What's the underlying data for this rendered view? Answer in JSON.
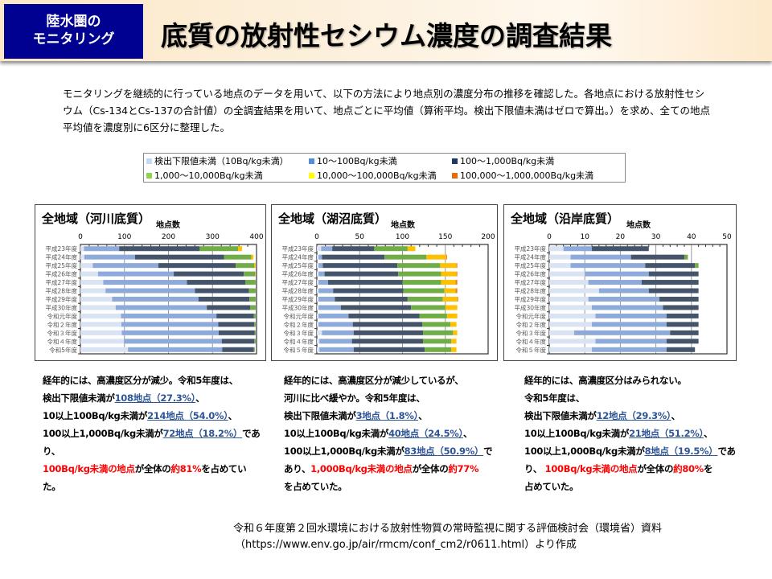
{
  "header": {
    "badge_line1": "陸水圏の",
    "badge_line2": "モニタリング",
    "title": "底質の放射性セシウム濃度の調査結果"
  },
  "intro": "モニタリングを継続的に行っている地点のデータを用いて、以下の方法により地点別の濃度分布の推移を確認した。各地点における放射性セシウム（Cs-134とCs-137の合計値）の全調査結果を用いて、地点ごとに平均値（算術平均。検出下限値未満はゼロで算出。）を求め、全ての地点平均値を濃度別に6区分に整理した。",
  "legend": [
    {
      "label": "検出下限値未満（10Bq/kg未満）",
      "color": "#c5d9f1"
    },
    {
      "label": "10～100Bq/kg未満",
      "color": "#558ed5"
    },
    {
      "label": "100～1,000Bq/kg未満",
      "color": "#1f3864"
    },
    {
      "label": "1,000～10,000Bq/kg未満",
      "color": "#92d050"
    },
    {
      "label": "10,000～100,000Bq/kg未満",
      "color": "#ffff00"
    },
    {
      "label": "100,000～1,000,000Bq/kg未満",
      "color": "#e46c0a"
    }
  ],
  "bar_colors": [
    "#dae3f3",
    "#8eaadb",
    "#44546a",
    "#70ad47",
    "#ffc000",
    "#ed7d31"
  ],
  "chart_data": [
    {
      "type": "bar",
      "orientation": "horizontal",
      "stacked": true,
      "title": "全地域（河川底質）",
      "xlabel": "地点数",
      "xlim": [
        0,
        400
      ],
      "xticks": [
        0,
        100,
        200,
        300,
        400
      ],
      "grid": true,
      "categories": [
        "平成23年度",
        "平成24年度",
        "平成25年度",
        "平成26年度",
        "平成27年度",
        "平成28年度",
        "平成29年度",
        "平成30年度",
        "令和元年度",
        "令和２年度",
        "令和３年度",
        "令和４年度",
        "令和5年度"
      ],
      "series": [
        {
          "name": "検出下限値未満（10Bq/kg未満）",
          "values": [
            8,
            9,
            28,
            40,
            52,
            57,
            72,
            80,
            92,
            93,
            94,
            99,
            108
          ]
        },
        {
          "name": "10～100Bq/kg未満",
          "values": [
            80,
            115,
            149,
            172,
            190,
            203,
            196,
            207,
            217,
            220,
            220,
            222,
            214
          ]
        },
        {
          "name": "100～1,000Bq/kg未満",
          "values": [
            183,
            202,
            176,
            159,
            133,
            123,
            116,
            99,
            85,
            82,
            82,
            74,
            72
          ]
        },
        {
          "name": "1,000～10,000Bq/kg未満",
          "values": [
            87,
            62,
            42,
            26,
            23,
            15,
            14,
            12,
            4,
            3,
            2,
            3,
            2
          ]
        },
        {
          "name": "10,000～100,000Bq/kg未満",
          "values": [
            9,
            5,
            3,
            1,
            0,
            0,
            0,
            0,
            0,
            0,
            0,
            0,
            0
          ]
        },
        {
          "name": "100,000～1,000,000Bq/kg未満",
          "values": [
            0,
            0,
            0,
            0,
            0,
            0,
            0,
            0,
            0,
            0,
            0,
            0,
            0
          ]
        }
      ]
    },
    {
      "type": "bar",
      "orientation": "horizontal",
      "stacked": true,
      "title": "全地域（湖沼底質）",
      "xlabel": "地点数",
      "xlim": [
        0,
        200
      ],
      "xticks": [
        0,
        50,
        100,
        150,
        200
      ],
      "grid": true,
      "categories": [
        "平成23年度",
        "平成24年度",
        "平成25年度",
        "平成26年度",
        "平成27年度",
        "平成28年度",
        "平成29年度",
        "平成30年度",
        "令和元年度",
        "令和２年度",
        "令和３年度",
        "令和４年度",
        "令和５年度"
      ],
      "series": [
        {
          "name": "検出下限値未満（10Bq/kg未満）",
          "values": [
            5,
            2,
            2,
            2,
            2,
            2,
            2,
            2,
            2,
            2,
            6,
            3,
            3
          ]
        },
        {
          "name": "10～100Bq/kg未満",
          "values": [
            13,
            4,
            5,
            7,
            11,
            17,
            19,
            26,
            35,
            40,
            37,
            38,
            40
          ]
        },
        {
          "name": "100～1,000Bq/kg未満",
          "values": [
            49,
            73,
            87,
            86,
            87,
            82,
            85,
            82,
            83,
            81,
            81,
            83,
            83
          ]
        },
        {
          "name": "1,000～10,000Bq/kg未満",
          "values": [
            39,
            49,
            50,
            50,
            45,
            48,
            41,
            40,
            32,
            33,
            35,
            33,
            31
          ]
        },
        {
          "name": "10,000～100,000Bq/kg未満",
          "values": [
            9,
            23,
            19,
            18,
            17,
            13,
            17,
            14,
            12,
            7,
            5,
            6,
            6
          ]
        },
        {
          "name": "100,000～1,000,000Bq/kg未満",
          "values": [
            0,
            1,
            1,
            1,
            2,
            2,
            1,
            0,
            0,
            0,
            0,
            0,
            0
          ]
        }
      ]
    },
    {
      "type": "bar",
      "orientation": "horizontal",
      "stacked": true,
      "title": "全地域（沿岸底質）",
      "xlabel": "地点数",
      "xlim": [
        0,
        50
      ],
      "xticks": [
        0,
        10,
        20,
        30,
        40,
        50
      ],
      "grid": true,
      "categories": [
        "平成23年度",
        "平成24年度",
        "平成25年度",
        "平成26年度",
        "平成27年度",
        "平成28年度",
        "平成29年度",
        "平成30年度",
        "令和元年度",
        "令和２年度",
        "令和３年度",
        "令和４年度",
        "令和５年度"
      ],
      "series": [
        {
          "name": "検出下限値未満（10Bq/kg未満）",
          "values": [
            4,
            6,
            6,
            10,
            11,
            14,
            11,
            12,
            13,
            12,
            7,
            13,
            12
          ]
        },
        {
          "name": "10～100Bq/kg未満",
          "values": [
            8,
            17,
            21,
            18,
            15,
            14,
            20,
            20,
            20,
            21,
            27,
            20,
            21
          ]
        },
        {
          "name": "100～1,000Bq/kg未満",
          "values": [
            16,
            15,
            14,
            14,
            16,
            14,
            11,
            10,
            9,
            9,
            8,
            9,
            8
          ]
        },
        {
          "name": "1,000～10,000Bq/kg未満",
          "values": [
            0,
            1,
            1,
            0,
            0,
            0,
            0,
            0,
            0,
            0,
            0,
            0,
            0
          ]
        },
        {
          "name": "10,000～100,000Bq/kg未満",
          "values": [
            0,
            0,
            0,
            0,
            0,
            0,
            0,
            0,
            0,
            0,
            0,
            0,
            0
          ]
        },
        {
          "name": "100,000～1,000,000Bq/kg未満",
          "values": [
            0,
            0,
            0,
            0,
            0,
            0,
            0,
            0,
            0,
            0,
            0,
            0,
            0
          ]
        }
      ]
    }
  ],
  "summaries": [
    [
      [
        {
          "t": "経年的には、高濃度区分が減少。令和5年度は、",
          "s": ""
        }
      ],
      [
        {
          "t": "検出下限値未満が",
          "s": ""
        },
        {
          "t": "108地点（27.3%）",
          "s": "link"
        },
        {
          "t": "、",
          "s": ""
        }
      ],
      [
        {
          "t": "10以上100Bq/kg未満が",
          "s": ""
        },
        {
          "t": "214地点（54.0%）",
          "s": "link"
        },
        {
          "t": "、",
          "s": ""
        }
      ],
      [
        {
          "t": "100以上1,000Bq/kg未満が",
          "s": ""
        },
        {
          "t": "72地点（18.2%）",
          "s": "link"
        },
        {
          "t": "であり、",
          "s": ""
        }
      ],
      [
        {
          "t": "100Bq/kg未満の地点",
          "s": "red"
        },
        {
          "t": "が全体の",
          "s": ""
        },
        {
          "t": "約81%",
          "s": "red"
        },
        {
          "t": "を占めてい",
          "s": ""
        }
      ],
      [
        {
          "t": "た。",
          "s": ""
        }
      ]
    ],
    [
      [
        {
          "t": "経年的には、高濃度区分が減少しているが、",
          "s": ""
        }
      ],
      [
        {
          "t": "河川に比べ緩やか。令和5年度は、",
          "s": ""
        }
      ],
      [
        {
          "t": "検出下限値未満が",
          "s": ""
        },
        {
          "t": "3地点（1.8%）",
          "s": "link"
        },
        {
          "t": "、",
          "s": ""
        }
      ],
      [
        {
          "t": "10以上100Bq/kg未満が",
          "s": ""
        },
        {
          "t": "40地点（24.5%）",
          "s": "link"
        },
        {
          "t": "、",
          "s": ""
        }
      ],
      [
        {
          "t": "100以上1,000Bq/kg未満が",
          "s": ""
        },
        {
          "t": "83地点（50.9%）",
          "s": "link"
        },
        {
          "t": "で",
          "s": ""
        }
      ],
      [
        {
          "t": "あり、",
          "s": ""
        },
        {
          "t": "1,000Bq/kg未満の地点",
          "s": "red"
        },
        {
          "t": "が全体の",
          "s": ""
        },
        {
          "t": "約77%",
          "s": "red"
        }
      ],
      [
        {
          "t": "を占めていた。",
          "s": ""
        }
      ]
    ],
    [
      [
        {
          "t": "経年的には、高濃度区分はみられない。",
          "s": ""
        }
      ],
      [
        {
          "t": "令和5年度は、",
          "s": ""
        }
      ],
      [
        {
          "t": "検出下限値未満が",
          "s": ""
        },
        {
          "t": "12地点（29.3%）",
          "s": "link"
        },
        {
          "t": "、",
          "s": ""
        }
      ],
      [
        {
          "t": "10以上100Bq/kg未満が",
          "s": ""
        },
        {
          "t": "21地点（51.2%）",
          "s": "link"
        },
        {
          "t": "、",
          "s": ""
        }
      ],
      [
        {
          "t": "100以上1,000Bq/kg未満が",
          "s": ""
        },
        {
          "t": "8地点（19.5%）",
          "s": "link"
        },
        {
          "t": "であ",
          "s": ""
        }
      ],
      [
        {
          "t": "り、 ",
          "s": ""
        },
        {
          "t": "100Bq/kg未満の地点",
          "s": "red"
        },
        {
          "t": "が全体の",
          "s": ""
        },
        {
          "t": "約80%",
          "s": "red"
        },
        {
          "t": "を",
          "s": ""
        }
      ],
      [
        {
          "t": "占めていた。",
          "s": ""
        }
      ]
    ]
  ],
  "footer": {
    "line1": "令和６年度第２回水環境における放射性物質の常時監視に関する評価検討会（環境省）資料",
    "line2": "（https://www.env.go.jp/air/rmcm/conf_cm2/r0611.html）より作成"
  }
}
